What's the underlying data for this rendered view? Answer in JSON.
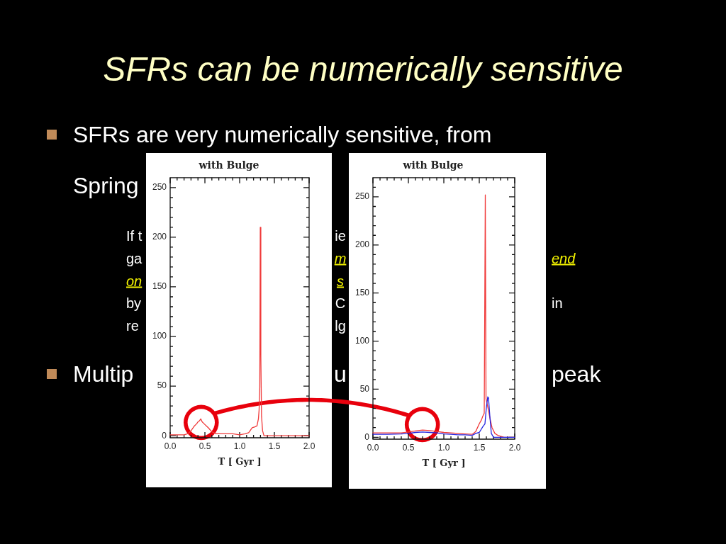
{
  "chart_data": [
    {
      "type": "other",
      "title": "SFRs can be numerically sensitive",
      "annotations": [
        "SFRs are very numerically sensitive, from",
        "Spring",
        "If t",
        "ie",
        "ga",
        "m",
        "end",
        "on",
        "s",
        "by",
        "C",
        "in",
        "re",
        "lg",
        "Multip",
        "u",
        "peak"
      ]
    },
    {
      "type": "line",
      "title": "with Bulge",
      "xlabel": "T [ Gyr ]",
      "xlim": [
        0,
        2
      ],
      "ylim": [
        -2,
        260
      ],
      "xticks": [
        {
          "value": 0,
          "label": "0.0"
        },
        {
          "value": 0.1,
          "label": null
        },
        {
          "value": 0.2,
          "label": null
        },
        {
          "value": 0.3,
          "label": null
        },
        {
          "value": 0.4,
          "label": null
        },
        {
          "value": 0.5,
          "label": "0.5"
        },
        {
          "value": 0.6,
          "label": null
        },
        {
          "value": 0.7,
          "label": null
        },
        {
          "value": 0.8,
          "label": null
        },
        {
          "value": 0.9,
          "label": null
        },
        {
          "value": 1,
          "label": "1.0"
        },
        {
          "value": 1.1,
          "label": null
        },
        {
          "value": 1.2,
          "label": null
        },
        {
          "value": 1.3,
          "label": null
        },
        {
          "value": 1.4,
          "label": null
        },
        {
          "value": 1.5,
          "label": "1.5"
        },
        {
          "value": 1.6,
          "label": null
        },
        {
          "value": 1.7,
          "label": null
        },
        {
          "value": 1.8,
          "label": null
        },
        {
          "value": 1.9,
          "label": null
        },
        {
          "value": 2,
          "label": "2.0"
        }
      ],
      "yticks": [
        0,
        {
          "value": 10,
          "label": null
        },
        {
          "value": 20,
          "label": null
        },
        {
          "value": 30,
          "label": null
        },
        {
          "value": 40,
          "label": null
        },
        50,
        {
          "value": 60,
          "label": null
        },
        {
          "value": 70,
          "label": null
        },
        {
          "value": 80,
          "label": null
        },
        {
          "value": 90,
          "label": null
        },
        100,
        {
          "value": 110,
          "label": null
        },
        {
          "value": 120,
          "label": null
        },
        {
          "value": 130,
          "label": null
        },
        {
          "value": 140,
          "label": null
        },
        150,
        {
          "value": 160,
          "label": null
        },
        {
          "value": 170,
          "label": null
        },
        {
          "value": 180,
          "label": null
        },
        {
          "value": 190,
          "label": null
        },
        200,
        {
          "value": 210,
          "label": null
        },
        {
          "value": 220,
          "label": null
        },
        {
          "value": 230,
          "label": null
        },
        {
          "value": 240,
          "label": null
        },
        250
      ],
      "series": [
        {
          "color": "#f03a3a",
          "x": [
            0,
            0.1,
            0.2,
            0.25,
            0.27,
            0.3,
            0.35,
            0.38,
            0.4,
            0.42,
            0.43,
            0.44,
            0.46,
            0.49,
            0.52,
            0.55,
            0.6,
            0.66,
            0.75,
            0.9,
            1.0,
            1.08,
            1.13,
            1.18,
            1.22,
            1.25,
            1.27,
            1.28,
            1.29,
            1.297,
            1.305,
            1.315,
            1.33,
            1.35,
            1.5,
            2.0
          ],
          "values": [
            1,
            1,
            1,
            2,
            3,
            5,
            10,
            12,
            14,
            15,
            16,
            17,
            14,
            12,
            10,
            8,
            4,
            2,
            2,
            2,
            1,
            2,
            3,
            8,
            9,
            10,
            17,
            26,
            49,
            210,
            80,
            20,
            5,
            0,
            0,
            0
          ]
        }
      ]
    },
    {
      "type": "line",
      "title": "with Bulge",
      "xlabel": "T [ Gyr ]",
      "xlim": [
        0,
        2
      ],
      "ylim": [
        -2,
        270
      ],
      "xticks": [
        {
          "value": 0,
          "label": "0.0"
        },
        {
          "value": 0.1,
          "label": null
        },
        {
          "value": 0.2,
          "label": null
        },
        {
          "value": 0.3,
          "label": null
        },
        {
          "value": 0.4,
          "label": null
        },
        {
          "value": 0.5,
          "label": "0.5"
        },
        {
          "value": 0.6,
          "label": null
        },
        {
          "value": 0.7,
          "label": null
        },
        {
          "value": 0.8,
          "label": null
        },
        {
          "value": 0.9,
          "label": null
        },
        {
          "value": 1,
          "label": "1.0"
        },
        {
          "value": 1.1,
          "label": null
        },
        {
          "value": 1.2,
          "label": null
        },
        {
          "value": 1.3,
          "label": null
        },
        {
          "value": 1.4,
          "label": null
        },
        {
          "value": 1.5,
          "label": "1.5"
        },
        {
          "value": 1.6,
          "label": null
        },
        {
          "value": 1.7,
          "label": null
        },
        {
          "value": 1.8,
          "label": null
        },
        {
          "value": 1.9,
          "label": null
        },
        {
          "value": 2,
          "label": "2.0"
        }
      ],
      "yticks": [
        0,
        {
          "value": 10,
          "label": null
        },
        {
          "value": 20,
          "label": null
        },
        {
          "value": 30,
          "label": null
        },
        {
          "value": 40,
          "label": null
        },
        50,
        {
          "value": 60,
          "label": null
        },
        {
          "value": 70,
          "label": null
        },
        {
          "value": 80,
          "label": null
        },
        {
          "value": 90,
          "label": null
        },
        100,
        {
          "value": 110,
          "label": null
        },
        {
          "value": 120,
          "label": null
        },
        {
          "value": 130,
          "label": null
        },
        {
          "value": 140,
          "label": null
        },
        150,
        {
          "value": 160,
          "label": null
        },
        {
          "value": 170,
          "label": null
        },
        {
          "value": 180,
          "label": null
        },
        {
          "value": 190,
          "label": null
        },
        200,
        {
          "value": 210,
          "label": null
        },
        {
          "value": 220,
          "label": null
        },
        {
          "value": 230,
          "label": null
        },
        {
          "value": 240,
          "label": null
        },
        250,
        {
          "value": 260,
          "label": null
        }
      ],
      "series": [
        {
          "color": "#f03a3a",
          "x": [
            0,
            0.2,
            0.4,
            0.5,
            0.6,
            0.7,
            0.8,
            0.9,
            1.0,
            1.1,
            1.2,
            1.3,
            1.4,
            1.45,
            1.5,
            1.53,
            1.55,
            1.57,
            1.585,
            1.595,
            1.61,
            1.63,
            1.65,
            1.68,
            1.72,
            1.76,
            1.8,
            1.85,
            2.0
          ],
          "values": [
            4.5,
            4.5,
            4.5,
            5.5,
            6.5,
            7.5,
            7,
            6,
            5,
            4.5,
            4,
            3.5,
            3,
            6,
            14,
            18,
            22,
            25,
            252,
            40,
            35,
            28,
            20,
            10,
            4,
            2,
            1,
            0,
            0
          ]
        },
        {
          "color": "#2323e0",
          "x": [
            0,
            0.2,
            0.4,
            0.5,
            0.6,
            0.7,
            0.8,
            0.9,
            1.0,
            1.1,
            1.2,
            1.3,
            1.4,
            1.45,
            1.5,
            1.55,
            1.58,
            1.6,
            1.62,
            1.63,
            1.65,
            1.67,
            1.7,
            2.0
          ],
          "values": [
            3,
            3,
            3.5,
            4,
            5,
            5.5,
            5,
            4.5,
            3.5,
            3,
            2.5,
            2.5,
            2,
            4,
            5,
            11,
            14,
            31,
            42,
            41,
            21,
            4,
            0,
            0
          ]
        }
      ]
    }
  ]
}
